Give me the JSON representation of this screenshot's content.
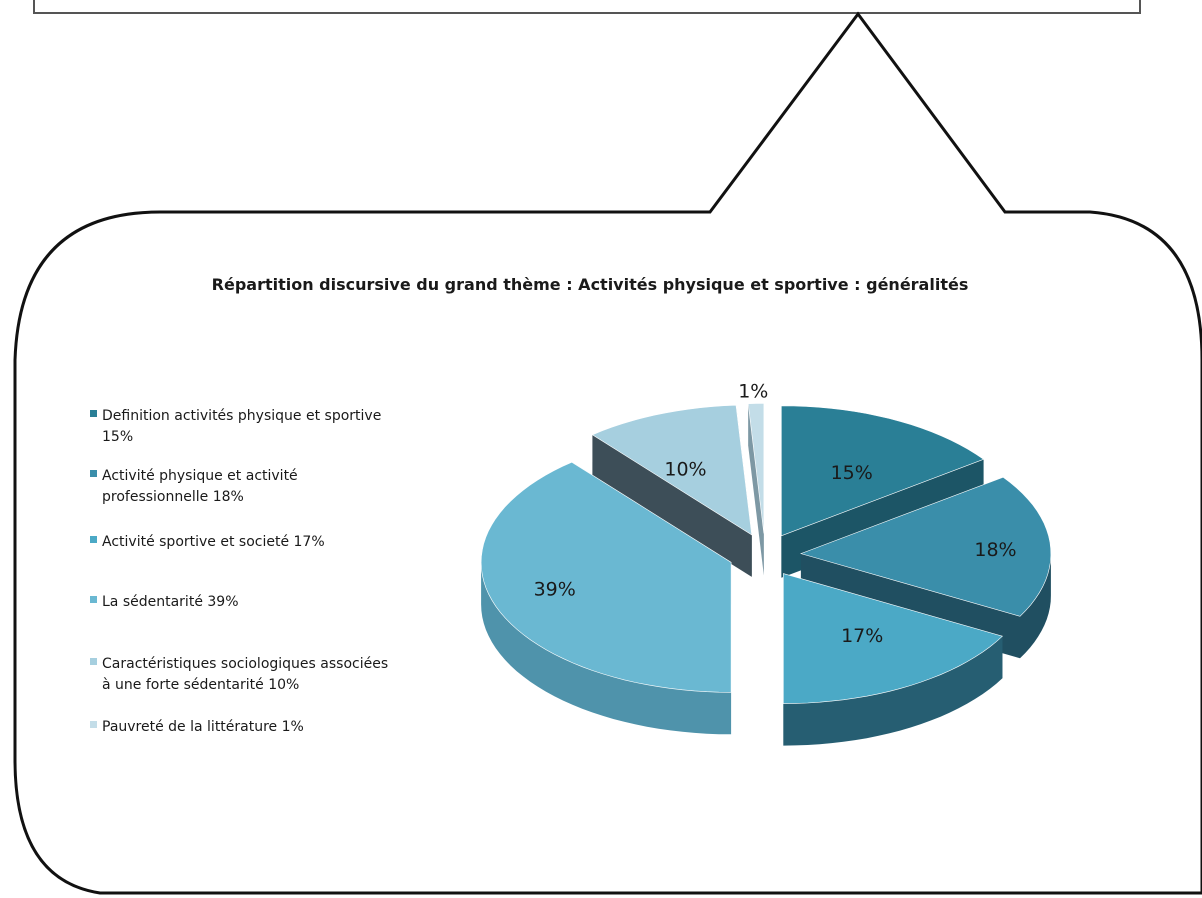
{
  "chart_data": {
    "type": "pie",
    "title": "Répartition discursive du grand thème : Activités physique et sportive : généralités",
    "slices": [
      {
        "legend": [
          "Definition activités physique et sportive",
          "15%"
        ],
        "value": 15,
        "label": "15%",
        "color": "#2a7f96",
        "side": "#1c5566"
      },
      {
        "legend": [
          "Activité physique et activité",
          "professionnelle 18%"
        ],
        "value": 18,
        "label": "18%",
        "color": "#3a8eaa",
        "side": "#204f61"
      },
      {
        "legend": [
          "Activité sportive et societé 17%"
        ],
        "value": 17,
        "label": "17%",
        "color": "#4ba9c6",
        "side": "#265e72"
      },
      {
        "legend": [
          "La sédentarité 39%"
        ],
        "value": 39,
        "label": "39%",
        "color": "#6ab8d2",
        "side": "#4f93ab"
      },
      {
        "legend": [
          "Caractéristiques sociologiques associées",
          "à une forte sédentarité 10%"
        ],
        "value": 10,
        "label": "10%",
        "color": "#a6cfdf",
        "side": "#3d4e58"
      },
      {
        "legend": [
          "Pauvreté de la littérature 1%"
        ],
        "value": 1,
        "label": "1%",
        "color": "#c3dde8",
        "side": "#7d98a4"
      }
    ],
    "legend_position": "left"
  }
}
